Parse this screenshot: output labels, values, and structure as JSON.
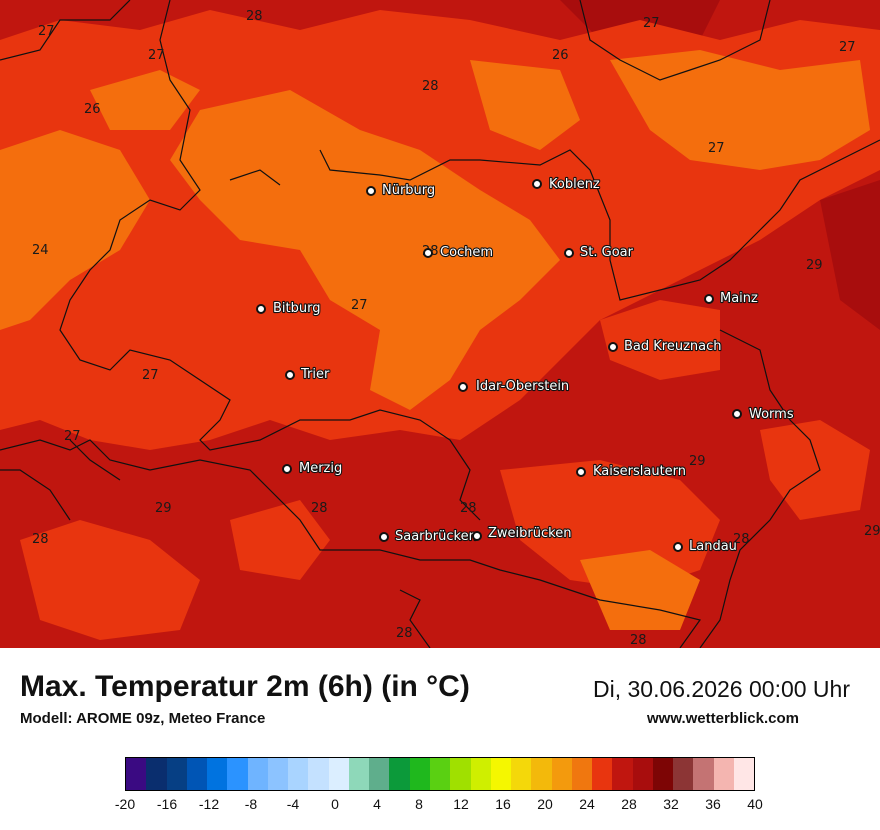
{
  "header": {
    "title": "Max. Temperatur 2m (6h) (in °C)",
    "model": "Modell: AROME 09z, Meteo France",
    "datetime": "Di, 30.06.2026 00:00 Uhr",
    "website": "www.wetterblick.com"
  },
  "map": {
    "cities": [
      {
        "name": "Nürburg"
      },
      {
        "name": "Koblenz"
      },
      {
        "name": "Cochem"
      },
      {
        "name": "St. Goar"
      },
      {
        "name": "Bitburg"
      },
      {
        "name": "Mainz"
      },
      {
        "name": "Bad Kreuznach"
      },
      {
        "name": "Trier"
      },
      {
        "name": "Idar-Oberstein"
      },
      {
        "name": "Worms"
      },
      {
        "name": "Merzig"
      },
      {
        "name": "Kaiserslautern"
      },
      {
        "name": "Saarbrücken"
      },
      {
        "name": "Zweibrücken"
      },
      {
        "name": "Landau"
      }
    ],
    "temperature_labels": [
      "28",
      "27",
      "27",
      "27",
      "26",
      "28",
      "27",
      "26",
      "24",
      "27",
      "29",
      "27",
      "27",
      "27",
      "29",
      "28",
      "29",
      "28",
      "29",
      "28",
      "28",
      "28",
      "28",
      "28"
    ],
    "colors": {
      "t24_26": "#e8350f",
      "t26_28": "#f46e0d",
      "t28_30": "#c0160f",
      "t30_32": "#a80d0d"
    }
  },
  "legend": {
    "unit": "°C",
    "ticks": [
      "-20",
      "-16",
      "-12",
      "-8",
      "-4",
      "0",
      "4",
      "8",
      "12",
      "16",
      "20",
      "24",
      "28",
      "32",
      "36",
      "40"
    ],
    "colors": [
      "#3a0a82",
      "#0a2e6e",
      "#063f84",
      "#0055b5",
      "#0073e0",
      "#2b93ff",
      "#6fb4ff",
      "#8cc3ff",
      "#a9d4ff",
      "#c4e1ff",
      "#dbeeff",
      "#8ed8b9",
      "#5fae8c",
      "#0c9a3a",
      "#1fb81d",
      "#5ad012",
      "#a0e000",
      "#cfef00",
      "#f5f700",
      "#f4d80a",
      "#f3b90b",
      "#f39a0d",
      "#f0770f",
      "#e8350f",
      "#c0160f",
      "#a80d0d",
      "#7d0505",
      "#8c3535",
      "#c47373",
      "#f4b5b0",
      "#ffe6e6"
    ]
  }
}
